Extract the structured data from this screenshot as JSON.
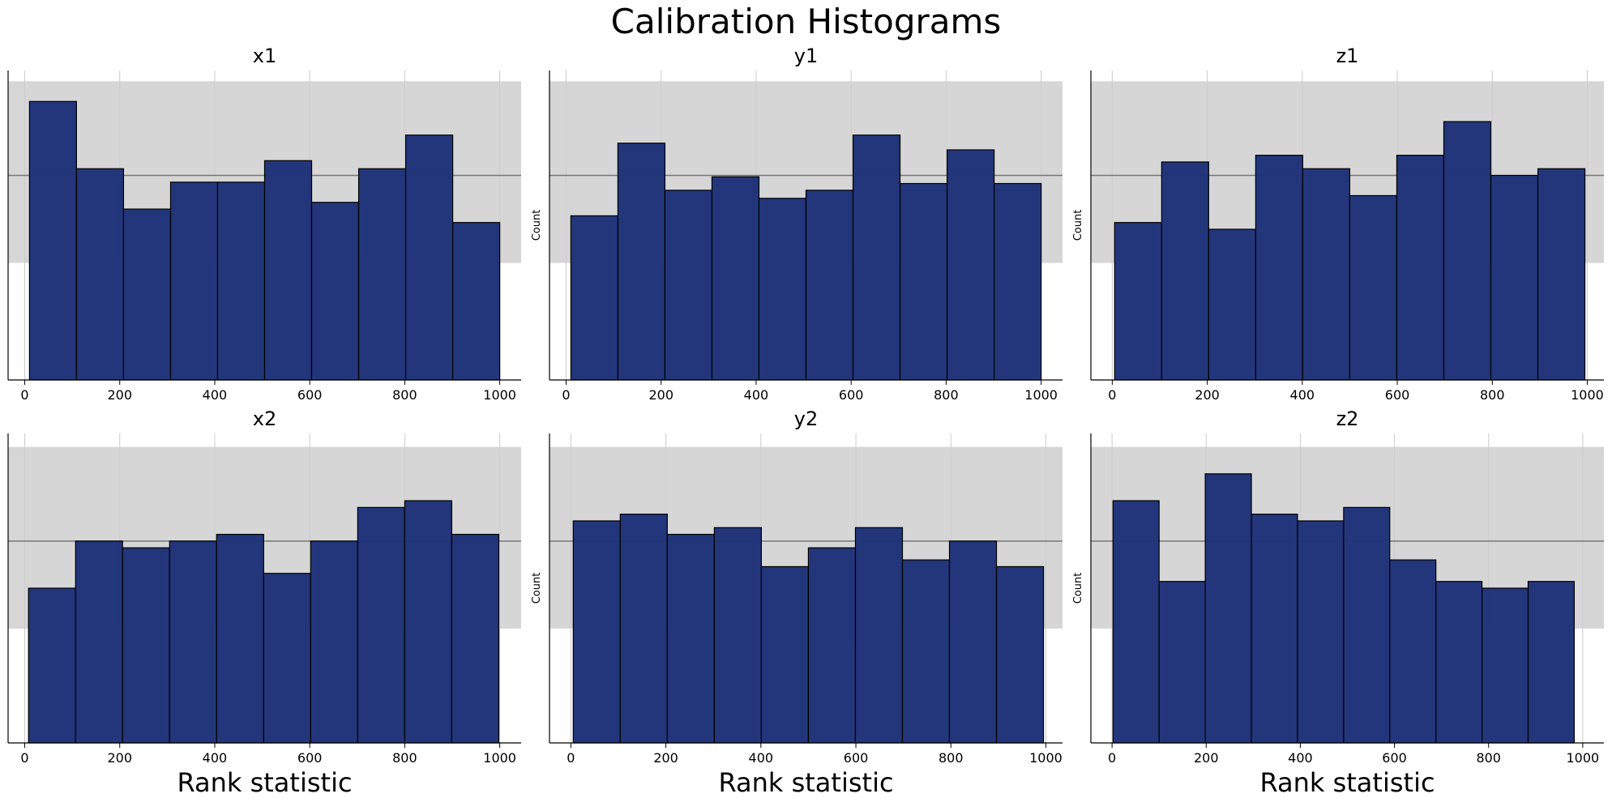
{
  "title": "Calibration Histograms",
  "colors": {
    "bar_fill": "#1f3278",
    "bar_edge": "#000000",
    "band": "#d6d6d6",
    "expected_line": "#777777",
    "grid": "#cccccc"
  },
  "chart_data": [
    {
      "type": "bar",
      "title": "x1",
      "xlabel": "",
      "ylabel": "",
      "bin_edges": [
        10,
        109,
        208,
        307,
        406,
        505,
        604,
        703,
        802,
        901,
        1000
      ],
      "values": [
        207,
        157,
        127,
        147,
        147,
        163,
        132,
        157,
        182,
        117
      ],
      "expected": 152,
      "band": [
        87,
        222
      ],
      "xlim": [
        -35,
        1045
      ],
      "ylim": [
        0,
        230
      ],
      "xticks": [
        0,
        200,
        400,
        600,
        800,
        1000
      ],
      "grid": true,
      "show_yaxis_label": false
    },
    {
      "type": "bar",
      "title": "y1",
      "xlabel": "",
      "ylabel": "Count",
      "bin_edges": [
        10,
        109,
        208,
        307,
        406,
        505,
        604,
        703,
        802,
        901,
        1000
      ],
      "values": [
        122,
        176,
        141,
        151,
        135,
        141,
        182,
        146,
        171,
        146
      ],
      "expected": 152,
      "band": [
        87,
        222
      ],
      "xlim": [
        -35,
        1045
      ],
      "ylim": [
        0,
        230
      ],
      "xticks": [
        0,
        200,
        400,
        600,
        800,
        1000
      ],
      "grid": true,
      "show_yaxis_label": true
    },
    {
      "type": "bar",
      "title": "z1",
      "xlabel": "",
      "ylabel": "Count",
      "bin_edges": [
        5,
        104,
        203,
        302,
        401,
        500,
        599,
        698,
        797,
        896,
        995
      ],
      "values": [
        117,
        162,
        112,
        167,
        157,
        137,
        167,
        192,
        152,
        157
      ],
      "expected": 152,
      "band": [
        87,
        222
      ],
      "xlim": [
        -45,
        1035
      ],
      "ylim": [
        0,
        230
      ],
      "xticks": [
        0,
        200,
        400,
        600,
        800,
        1000
      ],
      "grid": true,
      "show_yaxis_label": true
    },
    {
      "type": "bar",
      "title": "x2",
      "xlabel": "Rank statistic",
      "ylabel": "",
      "bin_edges": [
        8,
        107,
        206,
        305,
        404,
        503,
        602,
        701,
        800,
        899,
        998
      ],
      "values": [
        115,
        150,
        145,
        150,
        155,
        126,
        150,
        175,
        180,
        155
      ],
      "expected": 150,
      "band": [
        85,
        220
      ],
      "xlim": [
        -35,
        1045
      ],
      "ylim": [
        0,
        230
      ],
      "xticks": [
        0,
        200,
        400,
        600,
        800,
        1000
      ],
      "grid": true,
      "show_yaxis_label": false
    },
    {
      "type": "bar",
      "title": "y2",
      "xlabel": "Rank statistic",
      "ylabel": "Count",
      "bin_edges": [
        5,
        104,
        203,
        302,
        401,
        500,
        599,
        698,
        797,
        896,
        995
      ],
      "values": [
        165,
        170,
        155,
        160,
        131,
        145,
        160,
        136,
        150,
        131
      ],
      "expected": 150,
      "band": [
        85,
        220
      ],
      "xlim": [
        -45,
        1035
      ],
      "ylim": [
        0,
        230
      ],
      "xticks": [
        0,
        200,
        400,
        600,
        800,
        1000
      ],
      "grid": true,
      "show_yaxis_label": true
    },
    {
      "type": "bar",
      "title": "z2",
      "xlabel": "Rank statistic",
      "ylabel": "Count",
      "bin_edges": [
        2,
        100,
        198,
        296,
        394,
        492,
        590,
        688,
        786,
        884,
        982
      ],
      "values": [
        180,
        120,
        200,
        170,
        165,
        175,
        136,
        120,
        115,
        120
      ],
      "expected": 150,
      "band": [
        85,
        220
      ],
      "xlim": [
        -45,
        1045
      ],
      "ylim": [
        0,
        230
      ],
      "xticks": [
        0,
        200,
        400,
        600,
        800,
        1000
      ],
      "grid": true,
      "show_yaxis_label": true
    }
  ]
}
